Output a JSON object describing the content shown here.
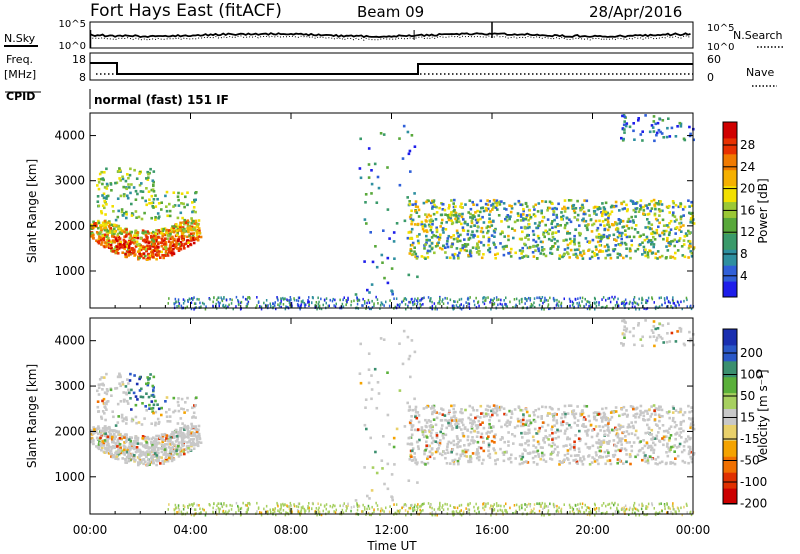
{
  "header": {
    "station": "Fort Hays East (fitACF)",
    "beam": "Beam 09",
    "date": "28/Apr/2016"
  },
  "panels": {
    "noise": {
      "left_label": "N.Sky",
      "right_label": "N.Search",
      "left_ticks": [
        "10^5",
        "10^0"
      ],
      "right_ticks": [
        "10^5",
        "10^0"
      ]
    },
    "freq": {
      "left_label": "Freq.",
      "left_unit": "[MHz]",
      "right_label": "Nave",
      "left_ticks": [
        "18",
        "8"
      ],
      "right_ticks": [
        "60",
        "0"
      ]
    },
    "cpid": {
      "label": "CPID",
      "value": "normal (fast) 151 IF"
    }
  },
  "colors": {
    "power": [
      "#1e1eea",
      "#2f5fd8",
      "#2e8fa0",
      "#3a9a6a",
      "#58a83a",
      "#9bc835",
      "#f2e000",
      "#f5b000",
      "#f07a00",
      "#e83000",
      "#d00000"
    ],
    "velocity": [
      "#1a2fb0",
      "#2a58c8",
      "#3b8f6f",
      "#5ab03a",
      "#a7d060",
      "#c8c8c8",
      "#e9d06a",
      "#f4a300",
      "#f07000",
      "#e03000",
      "#cc0000"
    ]
  },
  "chart_data": [
    {
      "type": "heatmap",
      "title": "Power",
      "ylabel": "Slant Range [km]",
      "xlabel": "Time UT",
      "x_ticks": [
        "00:00",
        "04:00",
        "08:00",
        "12:00",
        "16:00",
        "20:00",
        "00:00"
      ],
      "y_ticks": [
        "1000",
        "2000",
        "3000",
        "4000"
      ],
      "ylim": [
        180,
        4500
      ],
      "xlim_hours": [
        0,
        24
      ],
      "colorbar_label": "Power [dB]",
      "colorbar_ticks": [
        "4",
        "8",
        "12",
        "16",
        "20",
        "24",
        "28"
      ]
    },
    {
      "type": "heatmap",
      "title": "Velocity",
      "ylabel": "Slant Range [km]",
      "xlabel": "Time UT",
      "x_ticks": [
        "00:00",
        "04:00",
        "08:00",
        "12:00",
        "16:00",
        "20:00",
        "00:00"
      ],
      "y_ticks": [
        "1000",
        "2000",
        "3000",
        "4000"
      ],
      "ylim": [
        180,
        4500
      ],
      "xlim_hours": [
        0,
        24
      ],
      "colorbar_label": "Velocity [m s⁻¹]",
      "colorbar_ticks": [
        "200",
        "100",
        "50",
        "15",
        "-15",
        "-50",
        "-100",
        "-200"
      ]
    }
  ]
}
